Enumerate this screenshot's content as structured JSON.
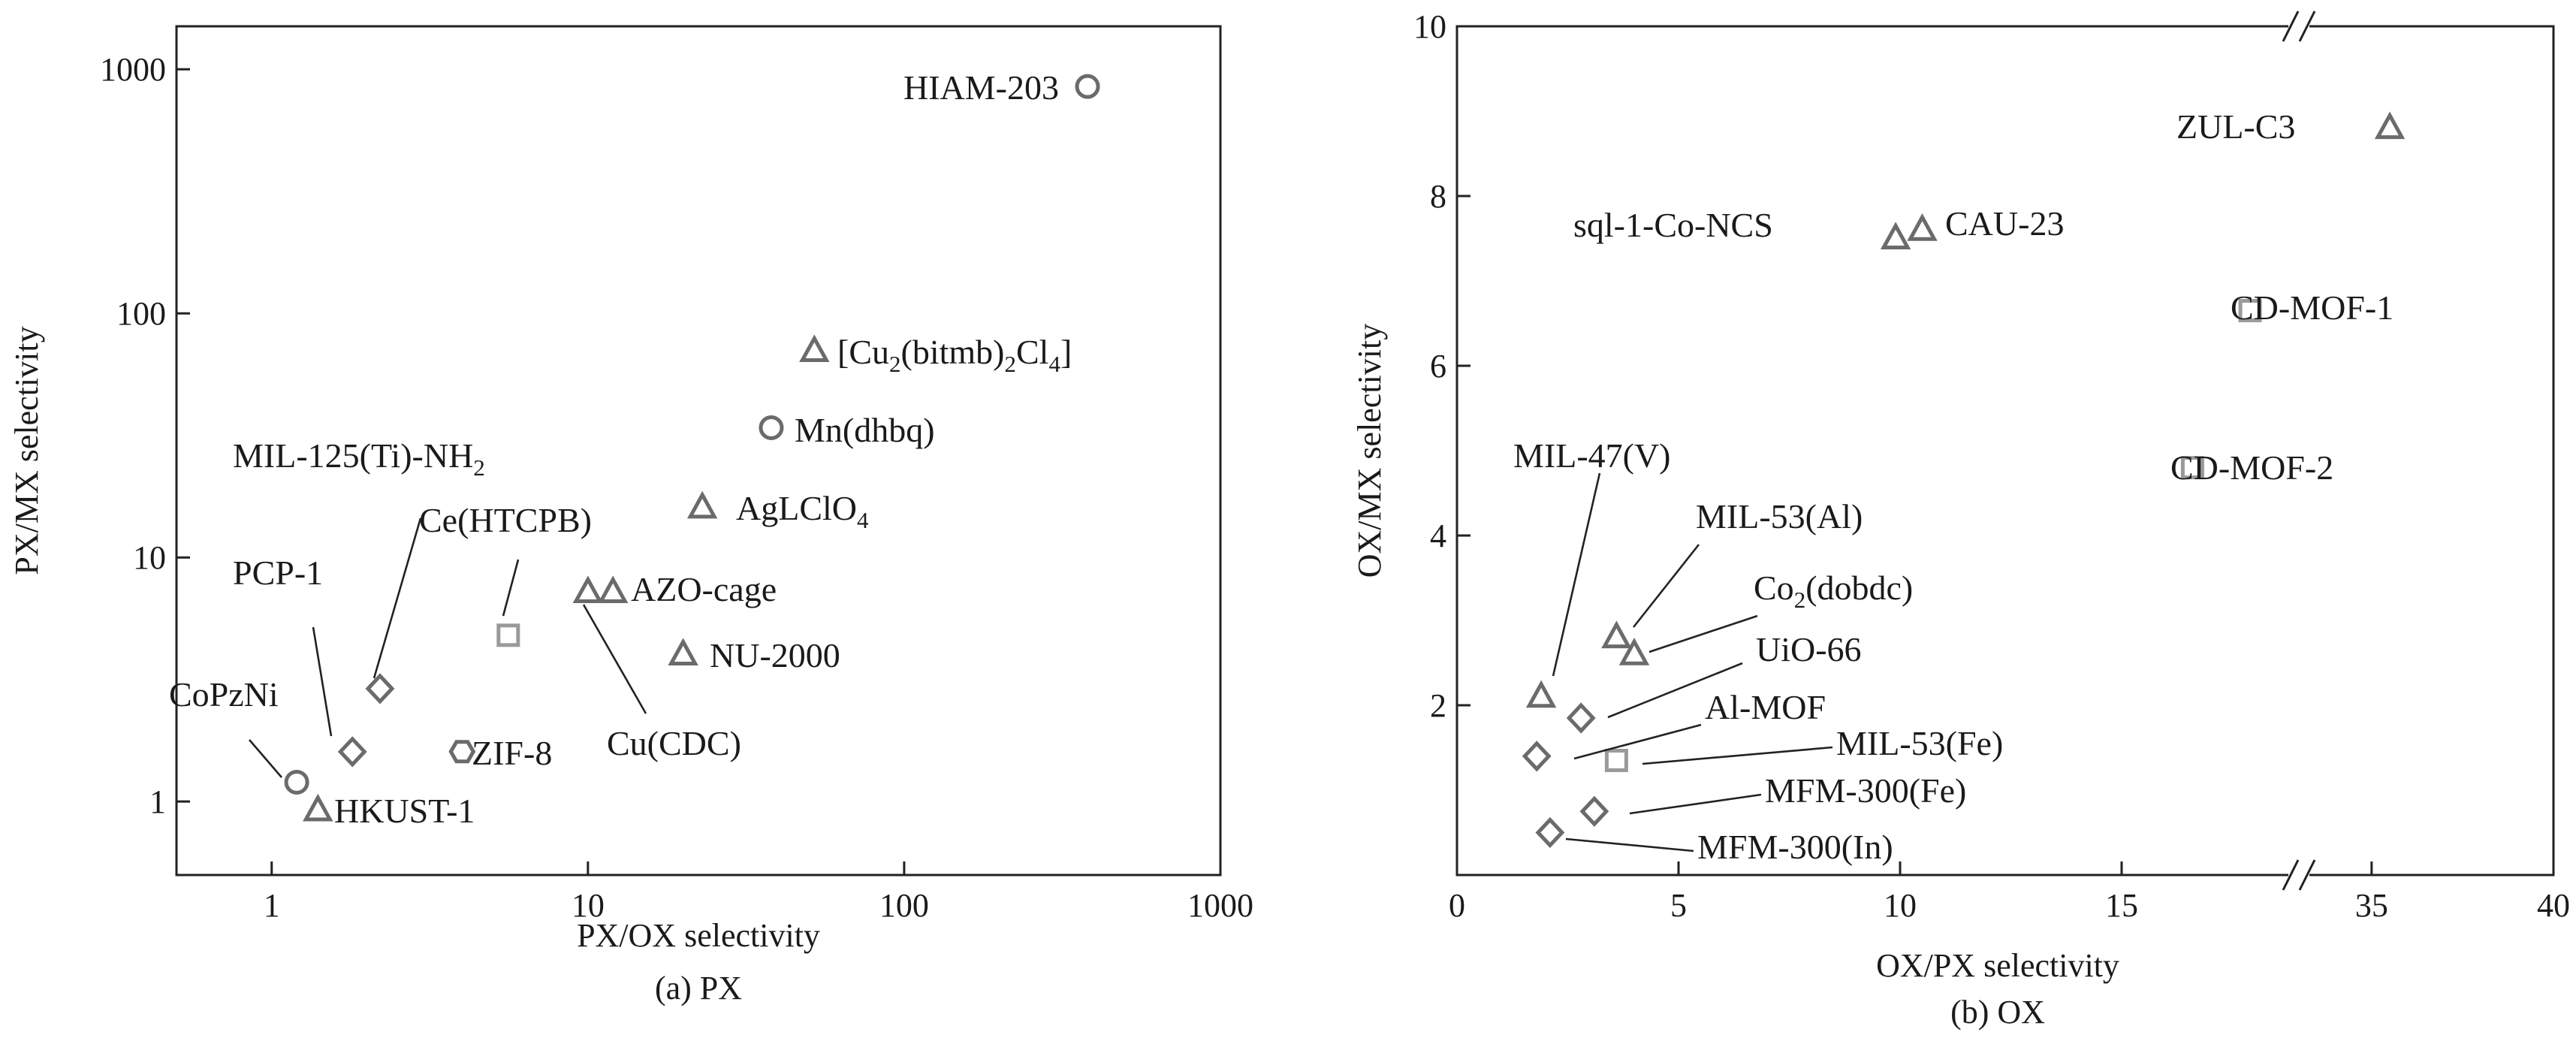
{
  "chart_data": [
    {
      "type": "scatter",
      "title": "",
      "caption": "(a) PX",
      "xlabel": "PX/OX selectivity",
      "ylabel": "PX/MX selectivity",
      "xscale": "log",
      "yscale": "log",
      "xlim": [
        0.5,
        1000
      ],
      "ylim": [
        0.5,
        1500
      ],
      "xticks": [
        "1",
        "10",
        "100",
        "1000"
      ],
      "yticks": [
        "1",
        "10",
        "100",
        "1000"
      ],
      "grid": false,
      "points": [
        {
          "label": "HIAM-203",
          "x": 380,
          "y": 850,
          "marker": "circle"
        },
        {
          "label": "[Cu2(bitmb)2Cl4]",
          "x": 52,
          "y": 70,
          "marker": "triangle"
        },
        {
          "label": "Mn(dhbq)",
          "x": 38,
          "y": 34,
          "marker": "circle"
        },
        {
          "label": "AgLClO4",
          "x": 23,
          "y": 16,
          "marker": "triangle"
        },
        {
          "label": "AZO-cage",
          "x": 12,
          "y": 7.2,
          "marker": "triangle"
        },
        {
          "label": "Cu(CDC)",
          "x": 10,
          "y": 7.2,
          "marker": "triangle"
        },
        {
          "label": "NU-2000",
          "x": 20,
          "y": 4,
          "marker": "triangle"
        },
        {
          "label": "Ce(HTCPB)",
          "x": 5.6,
          "y": 4.8,
          "marker": "square"
        },
        {
          "label": "ZIF-8",
          "x": 4,
          "y": 1.6,
          "marker": "hexagon"
        },
        {
          "label": "MIL-125(Ti)-NH2",
          "x": 2.2,
          "y": 2.9,
          "marker": "diamond"
        },
        {
          "label": "PCP-1",
          "x": 1.8,
          "y": 1.6,
          "marker": "diamond"
        },
        {
          "label": "CoPzNi",
          "x": 1.2,
          "y": 1.2,
          "marker": "circle"
        },
        {
          "label": "HKUST-1",
          "x": 1.4,
          "y": 0.92,
          "marker": "triangle"
        }
      ],
      "labels": {
        "HIAM-203": "HIAM-203",
        "cu2_main": "[Cu",
        "cu2_s1": "2",
        "cu2_mid": "(bitmb)",
        "cu2_s2": "2",
        "cu2_mid2": "Cl",
        "cu2_s3": "4",
        "cu2_end": "]",
        "mn": "Mn(dhbq)",
        "ag_main": "AgLClO",
        "ag_sub": "4",
        "azo": "AZO-cage",
        "cucdc": "Cu(CDC)",
        "nu": "NU-2000",
        "ce": "Ce(HTCPB)",
        "zif": "ZIF-8",
        "mil125_main": "MIL-125(Ti)-NH",
        "mil125_sub": "2",
        "pcp": "PCP-1",
        "copz": "CoPzNi",
        "hkust": "HKUST-1"
      }
    },
    {
      "type": "scatter",
      "title": "",
      "caption": "(b) OX",
      "xlabel": "OX/PX selectivity",
      "ylabel": "OX/MX selectivity",
      "xscale": "linear, broken axis",
      "xlim": [
        0,
        40
      ],
      "x_break": [
        19,
        33
      ],
      "ylim": [
        0,
        10
      ],
      "xticks": [
        "0",
        "5",
        "10",
        "15",
        "35",
        "40"
      ],
      "yticks": [
        "2",
        "4",
        "6",
        "8",
        "10"
      ],
      "grid": false,
      "points": [
        {
          "label": "ZUL-C3",
          "x": 35.5,
          "y": 8.8,
          "marker": "triangle"
        },
        {
          "label": "sql-1-Co-NCS",
          "x": 9.9,
          "y": 7.5,
          "marker": "triangle"
        },
        {
          "label": "CAU-23",
          "x": 10.5,
          "y": 7.6,
          "marker": "triangle"
        },
        {
          "label": "CD-MOF-1",
          "x": 17.9,
          "y": 6.65,
          "marker": "square"
        },
        {
          "label": "CD-MOF-2",
          "x": 16.6,
          "y": 4.8,
          "marker": "square"
        },
        {
          "label": "MIL-47(V)",
          "x": 1.9,
          "y": 2.1,
          "marker": "triangle"
        },
        {
          "label": "MIL-53(Al)",
          "x": 3.6,
          "y": 2.8,
          "marker": "triangle"
        },
        {
          "label": "Co2(dobdc)",
          "x": 4.0,
          "y": 2.6,
          "marker": "triangle"
        },
        {
          "label": "UiO-66",
          "x": 2.8,
          "y": 1.85,
          "marker": "diamond"
        },
        {
          "label": "Al-MOF",
          "x": 1.8,
          "y": 1.4,
          "marker": "diamond"
        },
        {
          "label": "MIL-53(Fe)",
          "x": 3.6,
          "y": 1.35,
          "marker": "square"
        },
        {
          "label": "MFM-300(Fe)",
          "x": 3.1,
          "y": 0.75,
          "marker": "diamond"
        },
        {
          "label": "MFM-300(In)",
          "x": 2.1,
          "y": 0.5,
          "marker": "diamond"
        }
      ],
      "labels": {
        "zul": "ZUL-C3",
        "sql": "sql-1-Co-NCS",
        "cau": "CAU-23",
        "cd1": "CD-MOF-1",
        "cd2": "CD-MOF-2",
        "mil47": "MIL-47(V)",
        "mil53al": "MIL-53(Al)",
        "co_main": "Co",
        "co_sub": "2",
        "co_end": "(dobdc)",
        "uio": "UiO-66",
        "almof": "Al-MOF",
        "mil53fe": "MIL-53(Fe)",
        "mfmfe": "MFM-300(Fe)",
        "mfmin": "MFM-300(In)"
      }
    }
  ]
}
